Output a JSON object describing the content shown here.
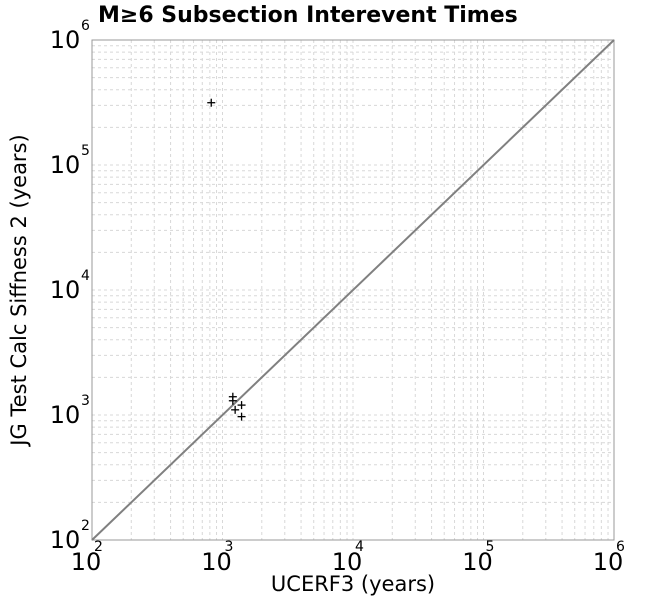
{
  "chart_data": {
    "type": "scatter",
    "title": "M≥6 Subsection Interevent Times",
    "xlabel": "UCERF3 (years)",
    "ylabel": "JG Test Calc Siffness 2 (years)",
    "xscale": "log",
    "yscale": "log",
    "xlim": [
      100,
      1000000
    ],
    "ylim": [
      100,
      1000000
    ],
    "grid": true,
    "x_ticks": [
      {
        "base": "10",
        "exp": "2"
      },
      {
        "base": "10",
        "exp": "3"
      },
      {
        "base": "10",
        "exp": "4"
      },
      {
        "base": "10",
        "exp": "5"
      },
      {
        "base": "10",
        "exp": "6"
      }
    ],
    "y_ticks": [
      {
        "base": "10",
        "exp": "2"
      },
      {
        "base": "10",
        "exp": "3"
      },
      {
        "base": "10",
        "exp": "4"
      },
      {
        "base": "10",
        "exp": "5"
      },
      {
        "base": "10",
        "exp": "6"
      }
    ],
    "reference_line": {
      "x": [
        100,
        1000000
      ],
      "y": [
        100,
        1000000
      ],
      "color": "#808080"
    },
    "points": [
      {
        "x": 820,
        "y": 315000
      },
      {
        "x": 1200,
        "y": 1300
      },
      {
        "x": 1200,
        "y": 1400
      },
      {
        "x": 1250,
        "y": 1100
      },
      {
        "x": 1400,
        "y": 1200
      },
      {
        "x": 1400,
        "y": 970
      }
    ],
    "marker_color": "#000000"
  }
}
